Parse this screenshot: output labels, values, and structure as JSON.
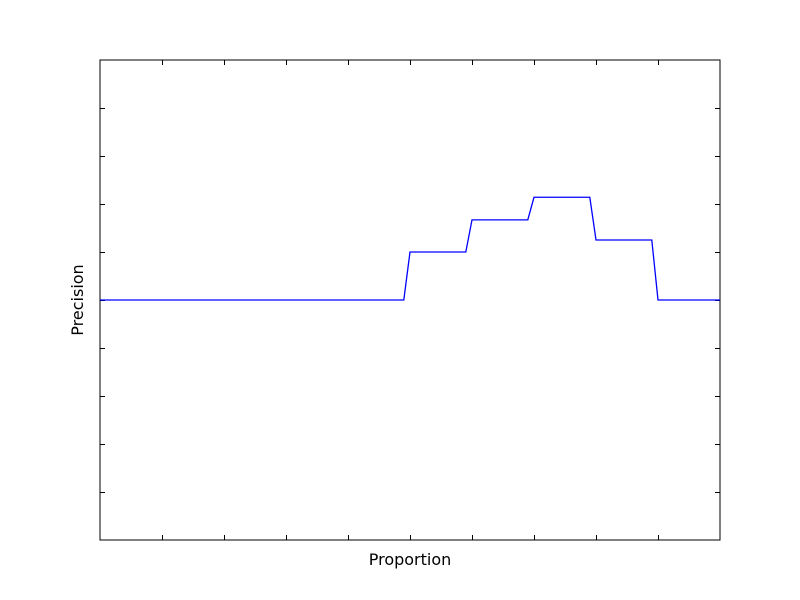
{
  "chart_data": {
    "type": "line",
    "title": "",
    "xlabel": "Proportion",
    "ylabel": "Precision",
    "xlim": [
      0,
      1
    ],
    "ylim": [
      0,
      1
    ],
    "grid": false,
    "legend": "none",
    "tick_labels_shown": false,
    "x_ticks": [
      0.1,
      0.2,
      0.3,
      0.4,
      0.5,
      0.6,
      0.7,
      0.8,
      0.9
    ],
    "y_ticks": [
      0.1,
      0.2,
      0.3,
      0.4,
      0.5,
      0.6,
      0.7,
      0.8,
      0.9
    ],
    "series": [
      {
        "color": "#0000ff",
        "x": [
          0.0,
          0.49,
          0.5,
          0.59,
          0.6,
          0.69,
          0.7,
          0.79,
          0.8,
          0.89,
          0.9,
          1.0
        ],
        "y": [
          0.5,
          0.5,
          0.6,
          0.6,
          0.667,
          0.667,
          0.714,
          0.714,
          0.625,
          0.625,
          0.5,
          0.5
        ]
      }
    ]
  }
}
